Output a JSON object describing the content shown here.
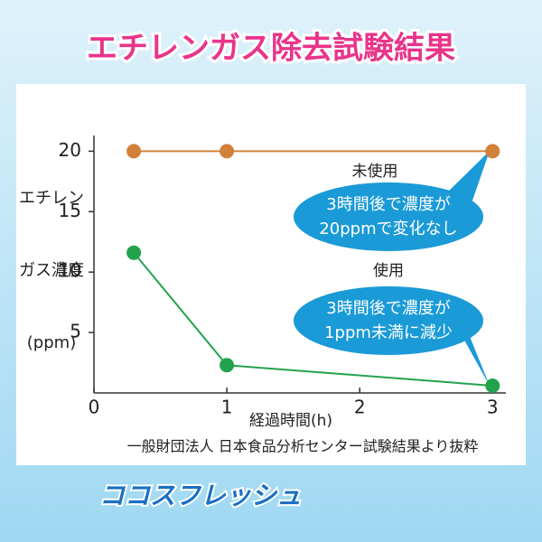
{
  "chart_data": {
    "type": "line",
    "title": "エチレンガス除去試験結果",
    "y_label": [
      "エチレン",
      "ガス濃度",
      "(ppm)"
    ],
    "x_label": "経過時間(h)",
    "source": "一般財団法人 日本食品分析センター試験結果より抜粋",
    "logo": "ココスフレッシュ",
    "x": [
      0.3,
      1,
      3
    ],
    "series": [
      {
        "name": "未使用",
        "color": "#d2813a",
        "values": [
          20,
          20,
          20
        ]
      },
      {
        "name": "使用",
        "color": "#23a24d",
        "values": [
          11.6,
          2.3,
          0.6
        ]
      }
    ],
    "xlim": [
      0,
      3.1
    ],
    "xticks": [
      0,
      1,
      2,
      3
    ],
    "ylim": [
      0,
      21.3
    ],
    "yticks": [
      5,
      10,
      15,
      20
    ],
    "annotations": [
      {
        "label": "未使用",
        "text": [
          "3時間後で濃度が",
          "20ppmで変化なし"
        ]
      },
      {
        "label": "使用",
        "text": [
          "3時間後で濃度が",
          "1ppm未満に減少"
        ]
      }
    ]
  }
}
